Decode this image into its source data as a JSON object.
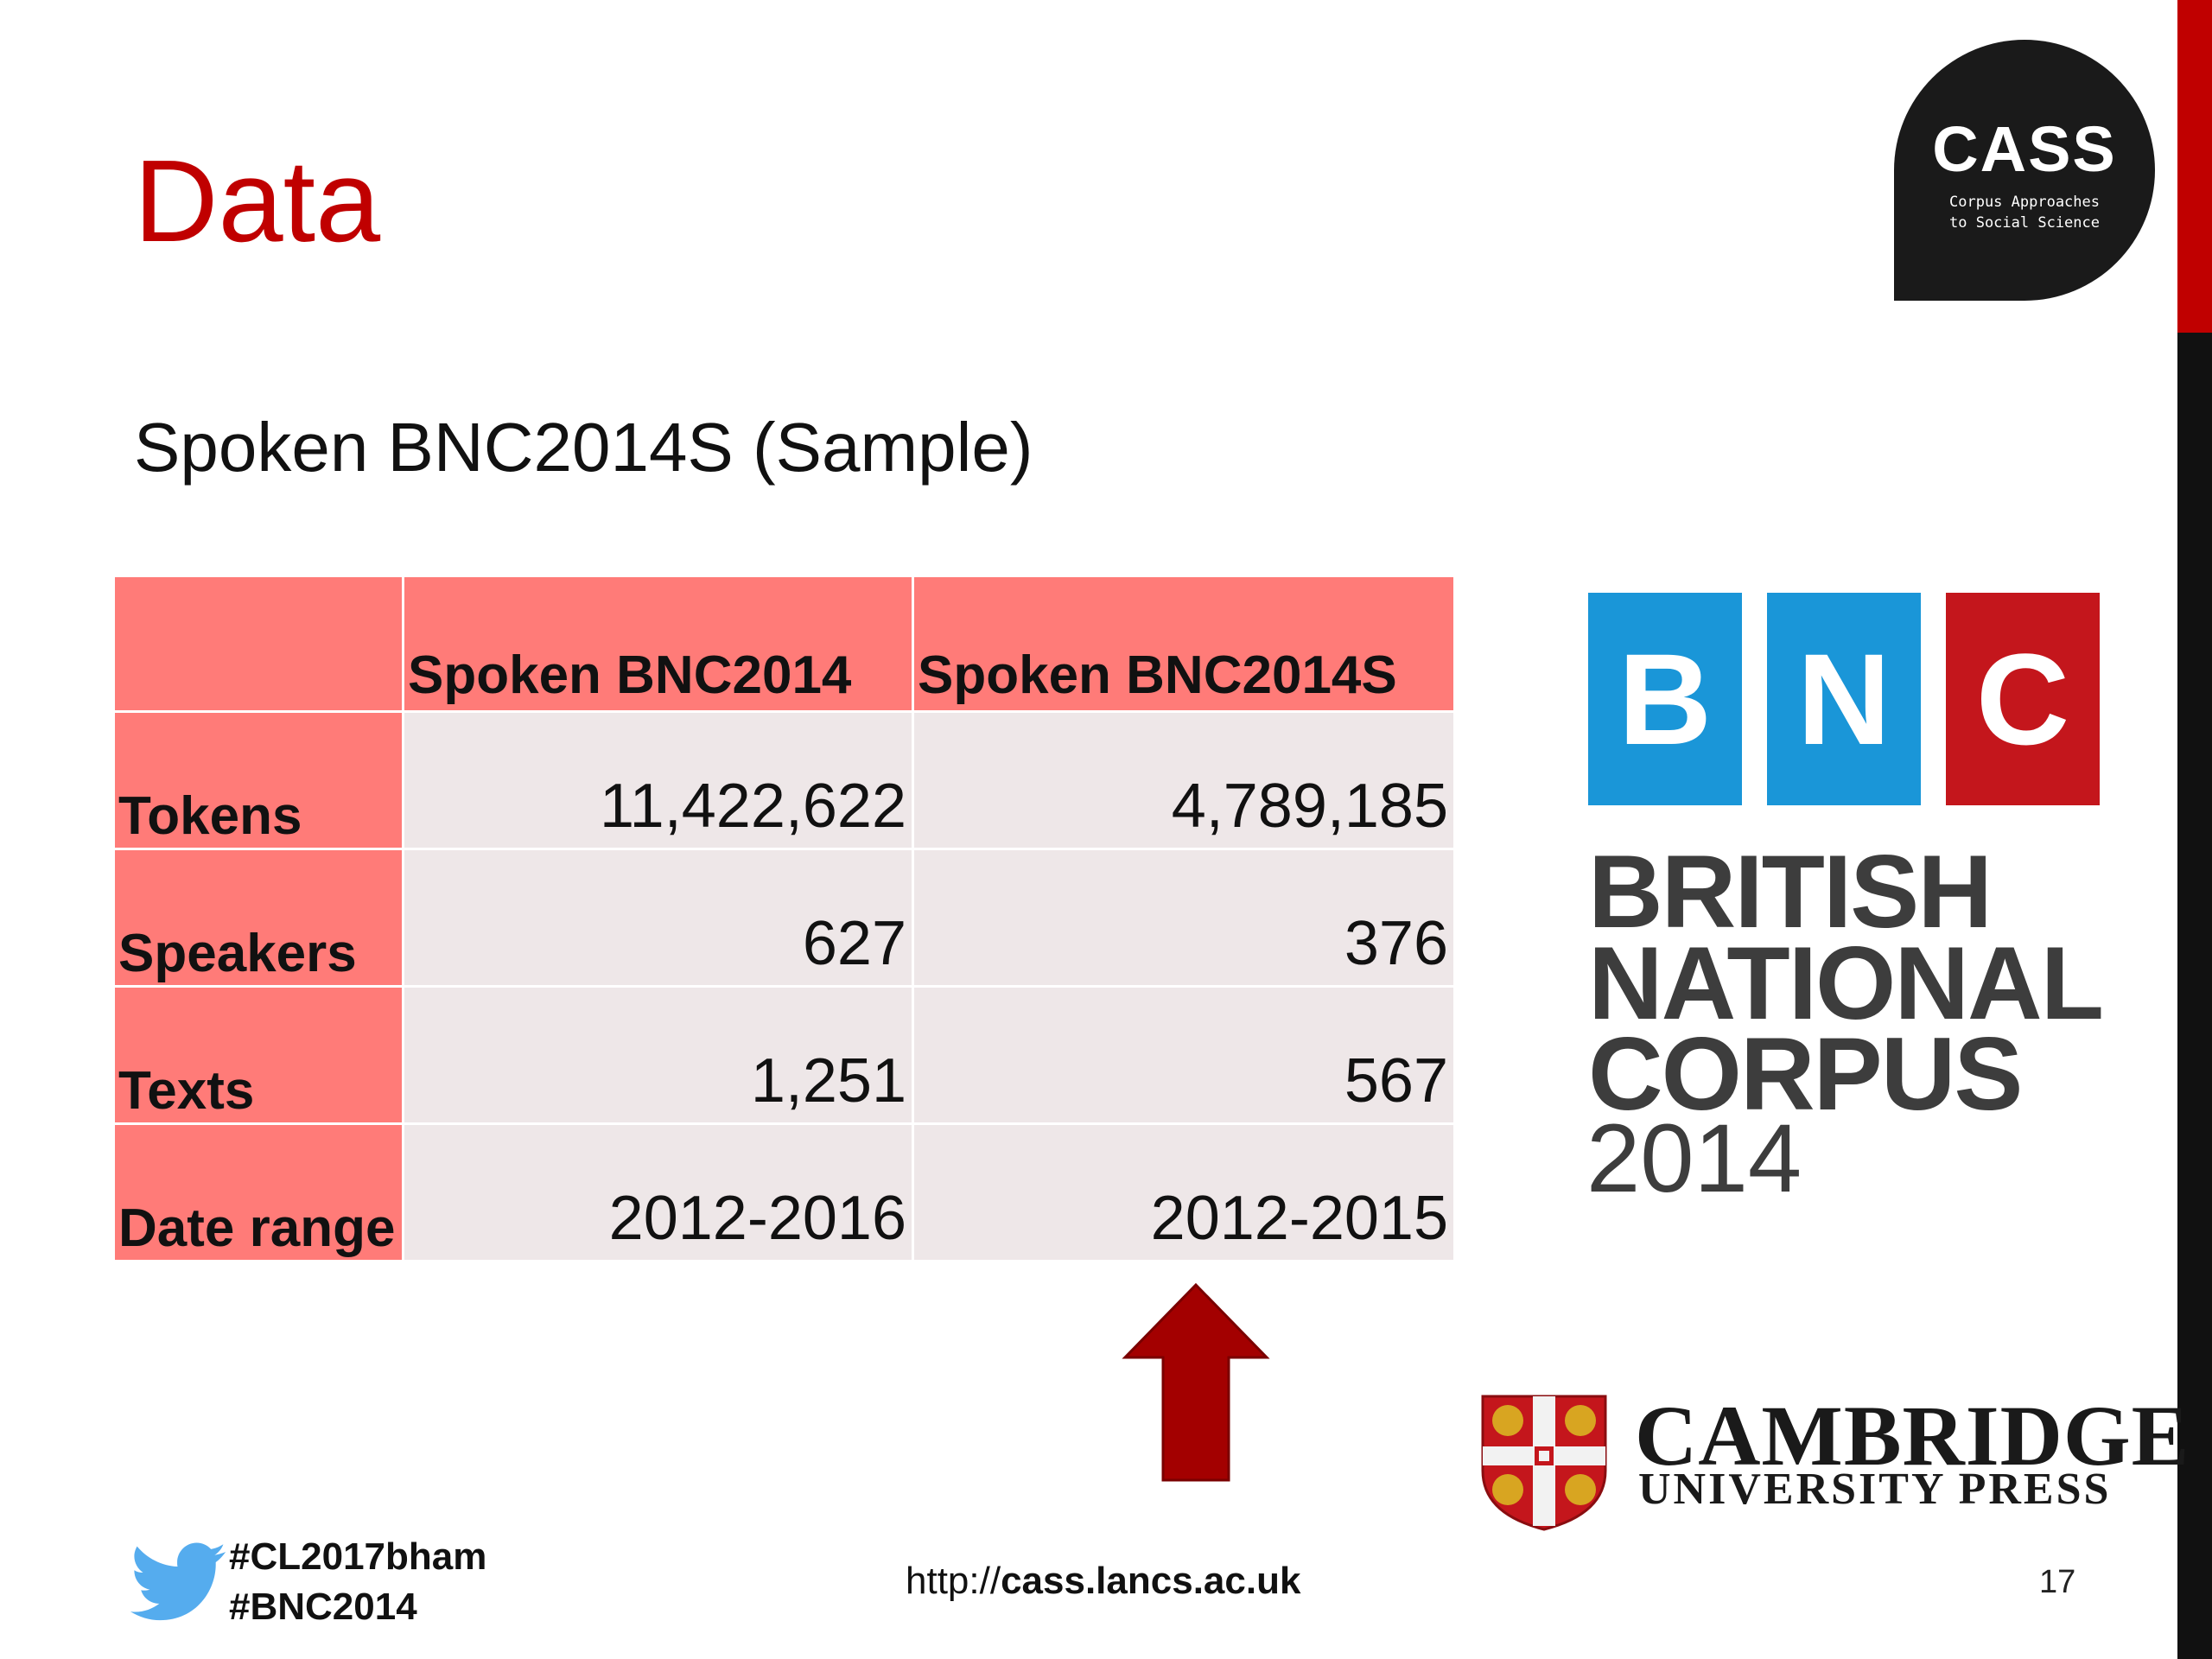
{
  "slide": {
    "title": "Data",
    "subtitle": "Spoken BNC2014S (Sample)",
    "page_number": "17"
  },
  "cass_logo": {
    "name": "CASS",
    "tagline_1": "Corpus Approaches",
    "tagline_2": "to Social Science"
  },
  "table": {
    "headers": [
      "",
      "Spoken BNC2014",
      "Spoken BNC2014S"
    ],
    "rows": [
      {
        "label": "Tokens",
        "values": [
          "11,422,622",
          "4,789,185"
        ]
      },
      {
        "label": "Speakers",
        "values": [
          "627",
          "376"
        ]
      },
      {
        "label": "Texts",
        "values": [
          "1,251",
          "567"
        ]
      },
      {
        "label": "Date range",
        "values": [
          "2012-2016",
          "2012-2015"
        ]
      }
    ]
  },
  "bnc_logo": {
    "letters": [
      "B",
      "N",
      "C"
    ],
    "line1": "BRITISH",
    "line2": "NATIONAL",
    "line3": "CORPUS",
    "year": "2014",
    "colors": {
      "blue": "#1a96d8",
      "red": "#c4161c",
      "text": "#3d3d3d"
    }
  },
  "arrow": {
    "icon": "up-arrow-icon",
    "color": "#a30000"
  },
  "cambridge": {
    "name": "CAMBRIDGE",
    "press": "UNIVERSITY PRESS"
  },
  "footer": {
    "hashtags": [
      "#CL2017bham",
      "#BNC2014"
    ],
    "url_prefix": "http://",
    "url_domain": "cass.lancs.ac.uk"
  },
  "colors": {
    "title_red": "#c00000",
    "table_header": "#ff7b78",
    "table_cell": "#eee7e8",
    "twitter_blue": "#55acee"
  }
}
